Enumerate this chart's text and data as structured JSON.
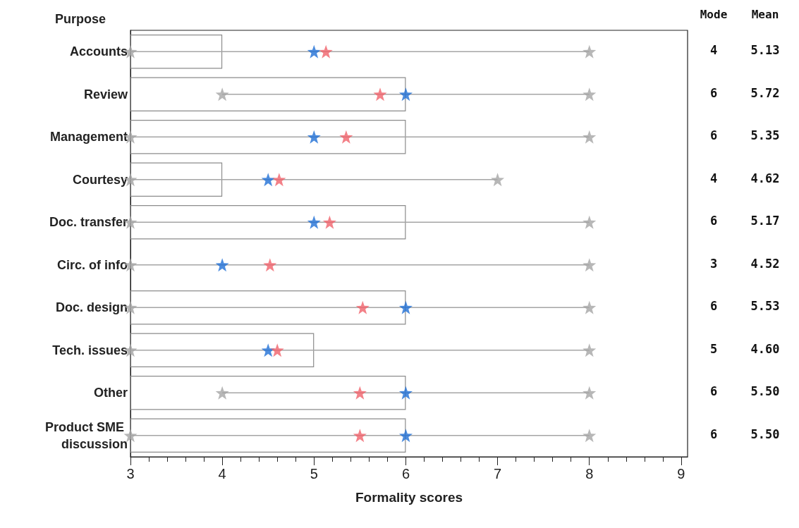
{
  "chart_data": {
    "type": "bar",
    "orientation": "horizontal",
    "ylabel": "Purpose",
    "xlabel": "Formality scores",
    "categories": [
      "Accounts",
      "Review",
      "Management",
      "Courtesy",
      "Doc. transfer",
      "Circ. of info",
      "Doc. design",
      "Tech. issues",
      "Other",
      "Product SME discussion"
    ],
    "series": [
      {
        "color": "#8c8c8c",
        "values": [
          4,
          6,
          6,
          4,
          6,
          3,
          6,
          5,
          6,
          6
        ],
        "value_labels": [
          "4",
          "6",
          "6",
          "4",
          "6",
          "3",
          "6",
          "5",
          "6",
          "6"
        ]
      },
      {
        "color": "#a5a5a5",
        "base": [
          3,
          4,
          3,
          3,
          3,
          3,
          3,
          3,
          4,
          3
        ],
        "values": [
          5,
          4,
          5,
          4,
          5,
          5,
          5,
          5,
          4,
          5
        ]
      },
      {
        "type": "scatter",
        "color": "#a5a5a5",
        "values": [
          3,
          4,
          3,
          3,
          3,
          3,
          3,
          3,
          4,
          3
        ]
      },
      {
        "type": "scatter",
        "color": "#a5a5a5",
        "values": [
          8,
          8,
          8,
          7,
          8,
          8,
          8,
          8,
          8,
          8
        ]
      },
      {
        "type": "scatter",
        "color": "#1f6fd6",
        "values": [
          5,
          6,
          5,
          4.5,
          5,
          4,
          6,
          4.5,
          6,
          6
        ]
      },
      {
        "type": "scatter",
        "color": "#f0626a",
        "values": [
          5.13,
          5.72,
          5.35,
          4.62,
          5.17,
          4.52,
          5.53,
          4.6,
          5.5,
          5.5
        ],
        "value_labels": [
          "5.13",
          "5.72",
          "5.35",
          "4.62",
          "5.17",
          "4.52",
          "5.53",
          "4.60",
          "5.50",
          "5.50"
        ]
      }
    ],
    "annotations": [
      "Mode",
      "Mean"
    ],
    "xlim": [
      3,
      9.07
    ],
    "xticks": [
      3,
      4,
      5,
      6,
      7,
      8,
      9
    ],
    "marker": "star",
    "grid": false
  }
}
